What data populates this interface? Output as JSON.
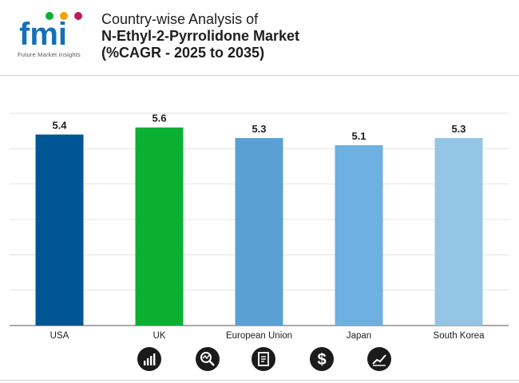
{
  "header": {
    "logo_text": "fmi",
    "logo_subtitle": "Future Market Insights",
    "title_line1": "Country-wise Analysis of",
    "title_line2": "N-Ethyl-2-Pyrrolidone Market",
    "title_line3": "(%CAGR - 2025 to 2035)"
  },
  "chart_data": {
    "type": "bar",
    "title": "Country-wise Analysis of N-Ethyl-2-Pyrrolidone Market (%CAGR - 2025 to 2035)",
    "categories": [
      "USA",
      "UK",
      "European Union",
      "Japan",
      "South Korea"
    ],
    "values": [
      5.4,
      5.6,
      5.3,
      5.1,
      5.3
    ],
    "colors": [
      "#005694",
      "#0bb031",
      "#5aa0d4",
      "#6db0e1",
      "#94c5e4"
    ],
    "ylim": [
      0,
      6.0
    ],
    "grid": true,
    "xlabel": "",
    "ylabel": ""
  },
  "footer_icons": [
    "growth-chart-icon",
    "analysis-icon",
    "document-icon",
    "dollar-icon",
    "trend-icon"
  ]
}
